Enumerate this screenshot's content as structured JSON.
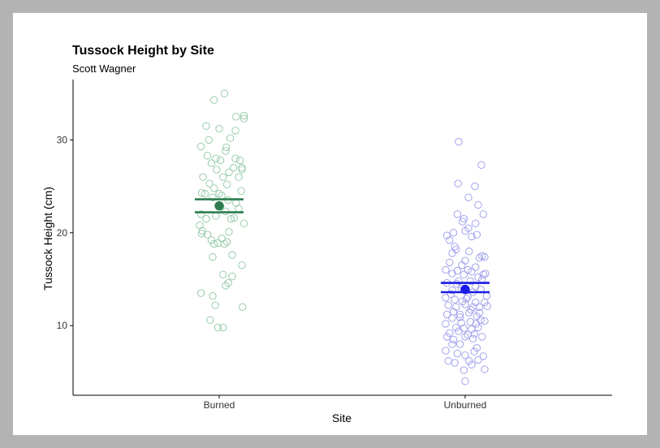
{
  "chart_data": {
    "type": "scatter",
    "title": "Tussock Height by Site",
    "subtitle": "Scott Wagner",
    "xlabel": "Site",
    "ylabel": "Tussock Height (cm)",
    "categories": [
      "Burned",
      "Unburned"
    ],
    "ylim": [
      2.5,
      36.5
    ],
    "yticks": [
      10,
      20,
      30
    ],
    "grid": false,
    "colors": {
      "Burned": "#2e7d4f",
      "Unburned": "#1a1ae6"
    },
    "point_colors": {
      "Burned": "#8fc7a4",
      "Unburned": "#9a9aeb"
    },
    "summary": [
      {
        "category": "Burned",
        "mean": 22.9,
        "lower": 22.2,
        "upper": 23.6
      },
      {
        "category": "Unburned",
        "mean": 13.9,
        "lower": 13.6,
        "upper": 14.6
      }
    ],
    "series": [
      {
        "category": "Burned",
        "points": [
          [
            -0.28,
            29.3
          ],
          [
            -0.2,
            31.5
          ],
          [
            -0.18,
            28.3
          ],
          [
            -0.12,
            27.5
          ],
          [
            -0.05,
            28.0
          ],
          [
            0.02,
            27.8
          ],
          [
            0.1,
            28.8
          ],
          [
            0.15,
            26.5
          ],
          [
            0.25,
            28.0
          ],
          [
            0.3,
            26.0
          ],
          [
            -0.25,
            26.0
          ],
          [
            -0.15,
            25.3
          ],
          [
            -0.08,
            24.8
          ],
          [
            0.0,
            24.2
          ],
          [
            0.06,
            26.0
          ],
          [
            0.12,
            25.2
          ],
          [
            0.22,
            27.0
          ],
          [
            0.32,
            27.8
          ],
          [
            0.35,
            26.8
          ],
          [
            0.34,
            24.5
          ],
          [
            -0.27,
            24.3
          ],
          [
            -0.22,
            24.2
          ],
          [
            -0.1,
            23.8
          ],
          [
            0.04,
            24.0
          ],
          [
            0.14,
            23.5
          ],
          [
            0.26,
            23.2
          ],
          [
            0.3,
            22.6
          ],
          [
            -0.28,
            22.0
          ],
          [
            -0.2,
            21.5
          ],
          [
            -0.05,
            21.8
          ],
          [
            0.02,
            22.8
          ],
          [
            0.1,
            22.3
          ],
          [
            0.18,
            21.5
          ],
          [
            0.23,
            21.6
          ],
          [
            0.38,
            21.0
          ],
          [
            -0.3,
            20.8
          ],
          [
            -0.26,
            20.2
          ],
          [
            -0.18,
            19.8
          ],
          [
            -0.12,
            19.2
          ],
          [
            -0.02,
            18.9
          ],
          [
            0.04,
            19.4
          ],
          [
            0.08,
            18.8
          ],
          [
            0.12,
            19.0
          ],
          [
            0.15,
            20.1
          ],
          [
            -0.27,
            19.9
          ],
          [
            -0.08,
            18.8
          ],
          [
            0.2,
            17.6
          ],
          [
            -0.1,
            17.4
          ],
          [
            0.2,
            15.3
          ],
          [
            0.06,
            15.5
          ],
          [
            0.1,
            14.3
          ],
          [
            0.14,
            14.6
          ],
          [
            0.35,
            16.5
          ],
          [
            -0.28,
            13.5
          ],
          [
            -0.1,
            13.2
          ],
          [
            -0.06,
            12.2
          ],
          [
            0.36,
            12.0
          ],
          [
            -0.14,
            10.6
          ],
          [
            -0.02,
            9.8
          ],
          [
            0.06,
            9.8
          ],
          [
            0.0,
            31.2
          ],
          [
            0.17,
            30.2
          ],
          [
            0.25,
            31.0
          ],
          [
            0.26,
            32.5
          ],
          [
            0.38,
            32.3
          ],
          [
            0.38,
            32.6
          ],
          [
            -0.16,
            30.0
          ],
          [
            0.11,
            29.2
          ],
          [
            0.35,
            27.0
          ],
          [
            -0.08,
            34.3
          ],
          [
            0.08,
            35.0
          ],
          [
            -0.04,
            26.8
          ]
        ]
      },
      {
        "category": "Unburned",
        "points": [
          [
            -0.1,
            29.8
          ],
          [
            0.25,
            27.3
          ],
          [
            -0.11,
            25.3
          ],
          [
            0.15,
            25.0
          ],
          [
            0.05,
            23.8
          ],
          [
            0.2,
            23.0
          ],
          [
            -0.12,
            22.0
          ],
          [
            0.28,
            22.0
          ],
          [
            -0.04,
            21.2
          ],
          [
            -0.02,
            21.5
          ],
          [
            0.16,
            21.0
          ],
          [
            0.05,
            20.5
          ],
          [
            -0.28,
            19.7
          ],
          [
            -0.24,
            19.2
          ],
          [
            -0.18,
            20.0
          ],
          [
            0.0,
            20.2
          ],
          [
            0.1,
            19.6
          ],
          [
            0.18,
            19.8
          ],
          [
            -0.16,
            18.5
          ],
          [
            -0.14,
            18.2
          ],
          [
            0.06,
            18.0
          ],
          [
            -0.2,
            17.8
          ],
          [
            0.0,
            17.0
          ],
          [
            0.22,
            17.3
          ],
          [
            0.26,
            17.5
          ],
          [
            0.3,
            17.4
          ],
          [
            -0.24,
            16.8
          ],
          [
            -0.05,
            16.5
          ],
          [
            0.16,
            16.3
          ],
          [
            0.04,
            16.0
          ],
          [
            -0.3,
            16.0
          ],
          [
            -0.2,
            15.6
          ],
          [
            -0.12,
            15.9
          ],
          [
            0.1,
            15.8
          ],
          [
            -0.02,
            15.5
          ],
          [
            0.2,
            15.2
          ],
          [
            0.28,
            15.5
          ],
          [
            0.31,
            15.6
          ],
          [
            -0.28,
            14.6
          ],
          [
            -0.1,
            14.8
          ],
          [
            0.08,
            14.8
          ],
          [
            0.26,
            15.0
          ],
          [
            -0.2,
            13.8
          ],
          [
            -0.04,
            14.3
          ],
          [
            0.12,
            13.6
          ],
          [
            0.24,
            13.9
          ],
          [
            -0.3,
            13.0
          ],
          [
            -0.16,
            12.8
          ],
          [
            -0.04,
            12.6
          ],
          [
            0.04,
            13.1
          ],
          [
            0.16,
            12.5
          ],
          [
            0.3,
            12.5
          ],
          [
            -0.26,
            12.2
          ],
          [
            -0.14,
            12.0
          ],
          [
            0.0,
            12.3
          ],
          [
            0.12,
            12.0
          ],
          [
            0.22,
            12.0
          ],
          [
            0.34,
            12.1
          ],
          [
            -0.28,
            11.2
          ],
          [
            -0.18,
            11.5
          ],
          [
            -0.08,
            11.2
          ],
          [
            0.06,
            11.4
          ],
          [
            0.18,
            11.0
          ],
          [
            0.3,
            10.5
          ],
          [
            -0.2,
            10.8
          ],
          [
            -0.06,
            10.3
          ],
          [
            0.08,
            10.4
          ],
          [
            0.24,
            10.6
          ],
          [
            -0.3,
            10.2
          ],
          [
            -0.14,
            9.8
          ],
          [
            -0.02,
            9.7
          ],
          [
            0.1,
            9.6
          ],
          [
            0.2,
            9.8
          ],
          [
            -0.24,
            9.2
          ],
          [
            -0.1,
            9.4
          ],
          [
            0.04,
            9.0
          ],
          [
            0.14,
            9.1
          ],
          [
            -0.28,
            8.8
          ],
          [
            -0.18,
            8.5
          ],
          [
            0.0,
            8.8
          ],
          [
            0.12,
            8.6
          ],
          [
            0.26,
            8.8
          ],
          [
            -0.2,
            8.0
          ],
          [
            -0.08,
            8.0
          ],
          [
            0.18,
            7.6
          ],
          [
            -0.3,
            7.3
          ],
          [
            -0.12,
            7.0
          ],
          [
            0.0,
            6.8
          ],
          [
            0.14,
            7.2
          ],
          [
            0.28,
            6.7
          ],
          [
            -0.26,
            6.2
          ],
          [
            -0.16,
            6.0
          ],
          [
            0.06,
            6.2
          ],
          [
            0.2,
            6.3
          ],
          [
            0.1,
            5.8
          ],
          [
            0.3,
            5.3
          ],
          [
            -0.02,
            5.2
          ],
          [
            0.0,
            4.0
          ],
          [
            -0.06,
            14.0
          ],
          [
            0.16,
            14.2
          ],
          [
            -0.22,
            13.4
          ],
          [
            0.02,
            12.9
          ],
          [
            0.09,
            11.7
          ],
          [
            0.22,
            11.4
          ],
          [
            -0.08,
            10.9
          ],
          [
            0.17,
            10.2
          ],
          [
            -0.13,
            14.5
          ],
          [
            0.33,
            13.2
          ]
        ]
      }
    ]
  }
}
